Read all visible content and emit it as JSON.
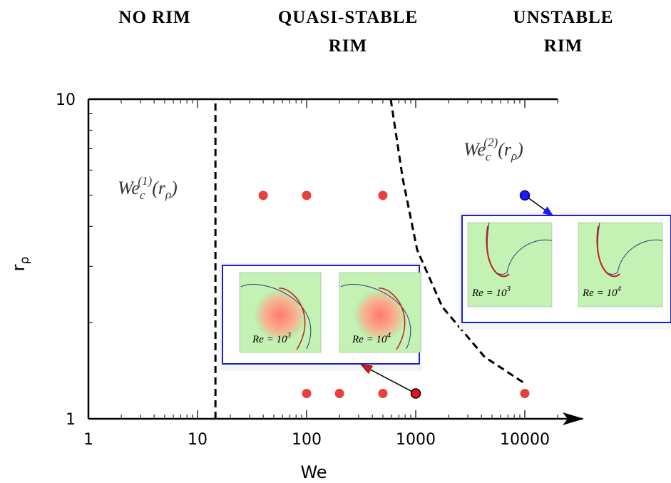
{
  "chart_data": {
    "type": "scatter",
    "headers": [
      [
        "NO RIM"
      ],
      [
        "QUASI-STABLE",
        "RIM"
      ],
      [
        "UNSTABLE",
        "RIM"
      ]
    ],
    "xlabel": "We",
    "ylabel": [
      "r",
      "ρ"
    ],
    "xlog": true,
    "ylog": true,
    "minor_ticks": true,
    "xlim": [
      1,
      20000
    ],
    "ylim": [
      1,
      10
    ],
    "xticks": [
      1,
      10,
      100,
      1000,
      10000
    ],
    "yticks": [
      1,
      10
    ],
    "series": [
      {
        "color": "#e8403c",
        "x": [
          40,
          100,
          500,
          100,
          200,
          500,
          10000
        ],
        "y": [
          5,
          5,
          5,
          1.2,
          1.2,
          1.2,
          1.2
        ]
      },
      {
        "color": "#e8101a",
        "outline": "#000000",
        "x": [
          1000
        ],
        "y": [
          1.2
        ]
      },
      {
        "color": "#1a1aff",
        "outline": "#000080",
        "x": [
          10000
        ],
        "y": [
          5
        ]
      }
    ],
    "boundaries": [
      {
        "x": [
          14.6,
          14.6
        ],
        "y": [
          1,
          10
        ],
        "label": [
          "We",
          "c",
          "(1)",
          "(r",
          "ρ",
          ")"
        ]
      },
      {
        "x": [
          590,
          760,
          1030,
          1750,
          4290,
          10000
        ],
        "y": [
          10,
          5.65,
          3.38,
          2.24,
          1.56,
          1.29
        ],
        "label": [
          "We",
          "c",
          "(2)",
          "(r",
          "ρ",
          ")"
        ]
      }
    ],
    "insets": [
      {
        "panels": [
          {
            "label": "Re = 10",
            "exponent": "3"
          },
          {
            "label": "Re = 10",
            "exponent": "4"
          }
        ]
      },
      {
        "panels": [
          {
            "label": "Re = 10",
            "exponent": "3"
          },
          {
            "label": "Re = 10",
            "exponent": "4"
          }
        ]
      }
    ]
  }
}
